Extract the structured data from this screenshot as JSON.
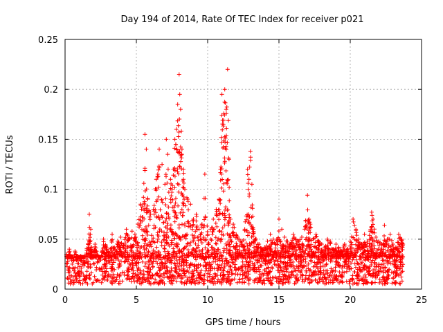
{
  "chart_data": {
    "type": "scatter",
    "title": "Day 194 of 2014, Rate Of TEC Index for receiver p021",
    "xlabel": "GPS time / hours",
    "ylabel": "ROTI / TECUs",
    "xlim": [
      0,
      25
    ],
    "ylim": [
      0,
      0.25
    ],
    "xticks": [
      0,
      5,
      10,
      15,
      20,
      25
    ],
    "yticks": [
      0,
      0.05,
      0.1,
      0.15,
      0.2,
      0.25
    ],
    "xtick_labels": [
      "0",
      "5",
      "10",
      "15",
      "20",
      "25"
    ],
    "ytick_labels": [
      "0",
      "0.05",
      "0.1",
      "0.15",
      "0.2",
      "0.25"
    ],
    "grid": true,
    "marker": "+",
    "color": "#ff0000",
    "series": [
      {
        "name": "ROTI",
        "x": [
          0.1,
          0.2,
          0.3,
          0.4,
          0.5,
          0.7,
          0.9,
          1.1,
          1.3,
          1.5,
          1.7,
          1.8,
          1.9,
          2.1,
          2.3,
          2.5,
          2.7,
          2.9,
          3.1,
          3.3,
          3.5,
          3.7,
          3.9,
          4.1,
          4.3,
          4.5,
          4.7,
          4.9,
          5.1,
          5.3,
          5.5,
          5.6,
          5.7,
          5.8,
          6.0,
          6.2,
          6.4,
          6.5,
          6.6,
          6.8,
          7.0,
          7.1,
          7.2,
          7.4,
          7.5,
          7.6,
          7.7,
          7.8,
          7.9,
          8.0,
          8.1,
          8.2,
          8.3,
          8.4,
          8.6,
          8.8,
          9.0,
          9.2,
          9.4,
          9.6,
          9.8,
          10.0,
          10.2,
          10.4,
          10.6,
          10.8,
          10.9,
          11.0,
          11.1,
          11.2,
          11.3,
          11.4,
          11.5,
          11.6,
          11.8,
          12.0,
          12.2,
          12.4,
          12.6,
          12.8,
          12.9,
          13.0,
          13.1,
          13.2,
          13.4,
          13.6,
          13.8,
          14.0,
          14.2,
          14.4,
          14.6,
          14.8,
          15.0,
          15.2,
          15.4,
          15.6,
          15.8,
          16.0,
          16.2,
          16.4,
          16.6,
          16.8,
          17.0,
          17.1,
          17.2,
          17.4,
          17.6,
          17.8,
          18.0,
          18.2,
          18.4,
          18.6,
          18.8,
          19.0,
          19.2,
          19.4,
          19.6,
          19.8,
          20.0,
          20.2,
          20.4,
          20.6,
          20.8,
          21.0,
          21.2,
          21.4,
          21.5,
          21.6,
          21.8,
          22.0,
          22.2,
          22.4,
          22.6,
          22.8,
          23.0,
          23.2,
          23.4,
          23.6,
          23.7
        ],
        "y": [
          0.035,
          0.028,
          0.04,
          0.032,
          0.025,
          0.038,
          0.03,
          0.033,
          0.027,
          0.036,
          0.075,
          0.06,
          0.031,
          0.045,
          0.034,
          0.029,
          0.05,
          0.042,
          0.036,
          0.055,
          0.04,
          0.048,
          0.052,
          0.044,
          0.06,
          0.05,
          0.058,
          0.055,
          0.065,
          0.085,
          0.092,
          0.155,
          0.14,
          0.09,
          0.075,
          0.08,
          0.11,
          0.115,
          0.14,
          0.125,
          0.105,
          0.15,
          0.135,
          0.11,
          0.1,
          0.12,
          0.15,
          0.16,
          0.185,
          0.215,
          0.18,
          0.14,
          0.12,
          0.1,
          0.09,
          0.085,
          0.07,
          0.075,
          0.06,
          0.065,
          0.115,
          0.055,
          0.06,
          0.07,
          0.08,
          0.09,
          0.12,
          0.195,
          0.165,
          0.2,
          0.18,
          0.22,
          0.13,
          0.07,
          0.065,
          0.055,
          0.05,
          0.048,
          0.06,
          0.12,
          0.11,
          0.138,
          0.105,
          0.06,
          0.05,
          0.045,
          0.04,
          0.042,
          0.048,
          0.055,
          0.05,
          0.045,
          0.07,
          0.06,
          0.052,
          0.048,
          0.045,
          0.055,
          0.05,
          0.048,
          0.052,
          0.06,
          0.094,
          0.07,
          0.065,
          0.05,
          0.055,
          0.048,
          0.045,
          0.042,
          0.05,
          0.048,
          0.04,
          0.045,
          0.042,
          0.038,
          0.045,
          0.04,
          0.048,
          0.07,
          0.06,
          0.05,
          0.045,
          0.055,
          0.048,
          0.058,
          0.077,
          0.07,
          0.052,
          0.048,
          0.045,
          0.064,
          0.05,
          0.055,
          0.045,
          0.042,
          0.055,
          0.05,
          0.045
        ]
      }
    ],
    "baseline_band": {
      "min": 0.005,
      "max": 0.032
    }
  }
}
